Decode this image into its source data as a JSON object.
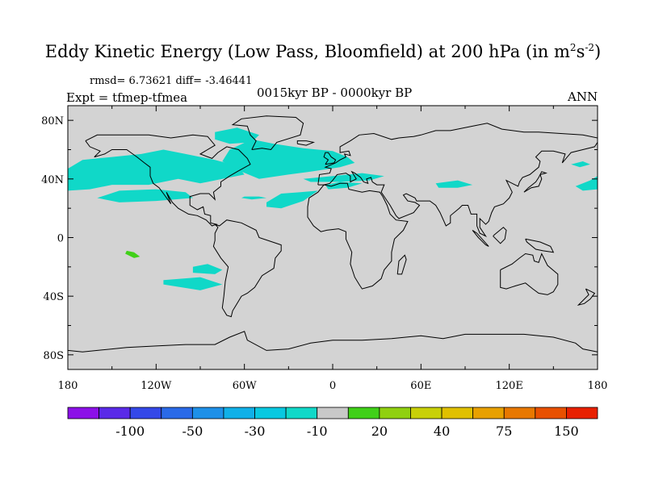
{
  "title": {
    "main": "Eddy Kinetic Energy (Low Pass, Bloomfield) at 200 hPa (in m",
    "sup1": "2",
    "mid": "s",
    "sup2": "-2",
    "close": ")"
  },
  "stats": "rmsd= 6.73621 diff= -3.46441",
  "expt": "Expt = tfmep-tfmea",
  "period": "0015kyr BP - 0000kyr BP",
  "season": "ANN",
  "colors": {
    "land_ocean_background": "#d3d3d3",
    "coastline": "#000000"
  },
  "chart_data": {
    "type": "heatmap",
    "projection": "cylindrical equidistant",
    "xlim": [
      -180,
      180
    ],
    "ylim": [
      -90,
      90
    ],
    "x_ticks": [
      "180",
      "120W",
      "60W",
      "0",
      "60E",
      "120E",
      "180"
    ],
    "y_ticks": [
      "80N",
      "40N",
      "0",
      "40S",
      "80S"
    ],
    "colorbar": {
      "colors": [
        "#8c10e8",
        "#5a2ae8",
        "#3448e8",
        "#2a6ae8",
        "#1e90e8",
        "#10b0e8",
        "#08c8e0",
        "#10d8c8",
        "#c8c8c8",
        "#40d018",
        "#90d010",
        "#c8d008",
        "#e0c000",
        "#e8a000",
        "#e87800",
        "#e85000",
        "#e82000"
      ],
      "labels": [
        "-100",
        "-50",
        "-30",
        "-10",
        "20",
        "40",
        "75",
        "150"
      ],
      "label_after_color_index": [
        1,
        3,
        5,
        7,
        9,
        11,
        13,
        15
      ]
    },
    "regions": [
      {
        "name": "north-pacific-band",
        "value": -10,
        "color": "#10d8c8",
        "polygon": [
          [
            -180,
            47
          ],
          [
            -170,
            53
          ],
          [
            -150,
            55
          ],
          [
            -130,
            57
          ],
          [
            -115,
            60
          ],
          [
            -100,
            57
          ],
          [
            -80,
            53
          ],
          [
            -65,
            49
          ],
          [
            -60,
            43
          ],
          [
            -75,
            40
          ],
          [
            -90,
            37
          ],
          [
            -105,
            40
          ],
          [
            -125,
            36
          ],
          [
            -150,
            36
          ],
          [
            -165,
            33
          ],
          [
            -180,
            32
          ]
        ]
      },
      {
        "name": "north-atlantic-band",
        "value": -10,
        "color": "#10d8c8",
        "polygon": [
          [
            -70,
            60
          ],
          [
            -55,
            67
          ],
          [
            -40,
            64
          ],
          [
            -20,
            61
          ],
          [
            0,
            59
          ],
          [
            10,
            55
          ],
          [
            15,
            51
          ],
          [
            5,
            48
          ],
          [
            -15,
            45
          ],
          [
            -30,
            43
          ],
          [
            -50,
            40
          ],
          [
            -62,
            45
          ],
          [
            -75,
            52
          ]
        ]
      },
      {
        "name": "canada-arctic",
        "value": -10,
        "color": "#10d8c8",
        "polygon": [
          [
            -80,
            72
          ],
          [
            -65,
            75
          ],
          [
            -50,
            70
          ],
          [
            -55,
            65
          ],
          [
            -70,
            64
          ],
          [
            -80,
            67
          ]
        ]
      },
      {
        "name": "subtropical-pacific",
        "value": -10,
        "color": "#10d8c8",
        "polygon": [
          [
            -160,
            27
          ],
          [
            -145,
            32
          ],
          [
            -120,
            33
          ],
          [
            -100,
            31
          ],
          [
            -95,
            27
          ],
          [
            -120,
            25
          ],
          [
            -145,
            24
          ]
        ]
      },
      {
        "name": "subtropical-atlantic",
        "value": -10,
        "color": "#10d8c8",
        "polygon": [
          [
            -45,
            24
          ],
          [
            -35,
            30
          ],
          [
            -22,
            31
          ],
          [
            -10,
            32
          ],
          [
            -20,
            25
          ],
          [
            -35,
            20
          ],
          [
            -45,
            21
          ]
        ]
      },
      {
        "name": "central-atlantic",
        "value": -10,
        "color": "#10d8c8",
        "polygon": [
          [
            -5,
            36
          ],
          [
            5,
            38
          ],
          [
            20,
            37
          ],
          [
            10,
            34
          ],
          [
            -3,
            33
          ]
        ]
      },
      {
        "name": "mid-atlantic-small",
        "value": -10,
        "color": "#10d8c8",
        "polygon": [
          [
            -60,
            28
          ],
          [
            -50,
            28
          ],
          [
            -45,
            27
          ],
          [
            -55,
            26
          ],
          [
            -62,
            27
          ]
        ]
      },
      {
        "name": "mediterranean",
        "value": -10,
        "color": "#10d8c8",
        "polygon": [
          [
            -20,
            40
          ],
          [
            0,
            42
          ],
          [
            20,
            44
          ],
          [
            35,
            42
          ],
          [
            25,
            39
          ],
          [
            5,
            38
          ],
          [
            -15,
            38
          ]
        ]
      },
      {
        "name": "central-asia",
        "value": -10,
        "color": "#10d8c8",
        "polygon": [
          [
            70,
            37
          ],
          [
            85,
            39
          ],
          [
            95,
            36
          ],
          [
            85,
            34
          ],
          [
            72,
            34
          ]
        ]
      },
      {
        "name": "northwest-pacific",
        "value": -10,
        "color": "#10d8c8",
        "polygon": [
          [
            165,
            35
          ],
          [
            175,
            39
          ],
          [
            180,
            42
          ],
          [
            180,
            33
          ],
          [
            170,
            32
          ]
        ]
      },
      {
        "name": "kamchatka-pacific",
        "value": -10,
        "color": "#10d8c8",
        "polygon": [
          [
            162,
            50
          ],
          [
            170,
            52
          ],
          [
            175,
            50
          ],
          [
            168,
            48
          ]
        ]
      },
      {
        "name": "south-pacific-upper",
        "value": -10,
        "color": "#10d8c8",
        "polygon": [
          [
            -95,
            -20
          ],
          [
            -85,
            -18
          ],
          [
            -75,
            -22
          ],
          [
            -80,
            -25
          ],
          [
            -95,
            -24
          ]
        ]
      },
      {
        "name": "south-pacific-lower",
        "value": -10,
        "color": "#10d8c8",
        "polygon": [
          [
            -115,
            -29
          ],
          [
            -90,
            -27
          ],
          [
            -75,
            -32
          ],
          [
            -90,
            -36
          ],
          [
            -115,
            -32
          ]
        ]
      },
      {
        "name": "south-pacific-positive",
        "value": 20,
        "color": "#40d018",
        "polygon": [
          [
            -140,
            -9
          ],
          [
            -135,
            -10
          ],
          [
            -131,
            -13
          ],
          [
            -135,
            -14
          ],
          [
            -141,
            -11
          ]
        ]
      }
    ]
  }
}
